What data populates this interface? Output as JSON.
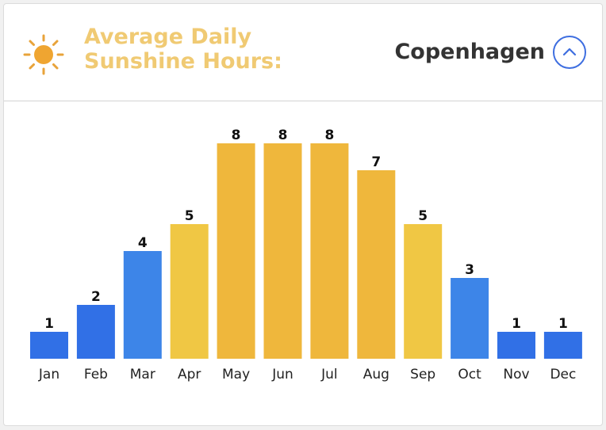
{
  "header": {
    "title": "Average Daily Sunshine Hours:",
    "city": "Copenhagen",
    "sun_icon": "sun-icon",
    "toggle_icon": "chevron-up-icon"
  },
  "colors": {
    "title": "#f0ca73",
    "low": "#3170e6",
    "mid": "#3d85e8",
    "warm": "#f0c744",
    "high": "#efb73c",
    "accent": "#3e6ee0"
  },
  "chart_data": {
    "type": "bar",
    "title": "Average Daily Sunshine Hours",
    "categories": [
      "Jan",
      "Feb",
      "Mar",
      "Apr",
      "May",
      "Jun",
      "Jul",
      "Aug",
      "Sep",
      "Oct",
      "Nov",
      "Dec"
    ],
    "values": [
      1,
      2,
      4,
      5,
      8,
      8,
      8,
      7,
      5,
      3,
      1,
      1
    ],
    "ylim": [
      0,
      8
    ],
    "xlabel": "",
    "ylabel": "",
    "grid": false,
    "data_labels": true
  }
}
